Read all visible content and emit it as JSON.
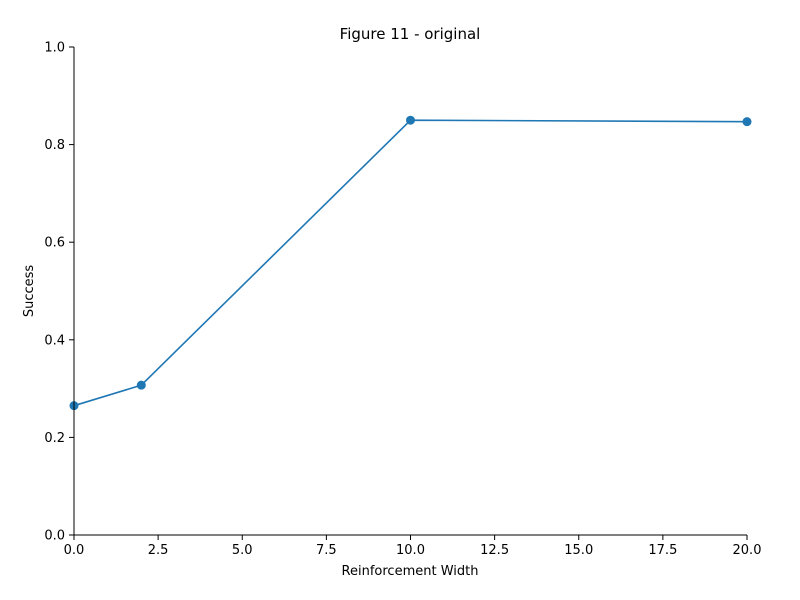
{
  "chart_data": {
    "type": "line",
    "title": "Figure 11 - original",
    "xlabel": "Reinforcement Width",
    "ylabel": "Success",
    "xlim": [
      0,
      20
    ],
    "ylim": [
      0,
      1
    ],
    "xticks": [
      0,
      2.5,
      5,
      7.5,
      10,
      12.5,
      15,
      17.5,
      20
    ],
    "xtick_labels": [
      "0.0",
      "2.5",
      "5.0",
      "7.5",
      "10.0",
      "12.5",
      "15.0",
      "17.5",
      "20.0"
    ],
    "yticks": [
      0,
      0.2,
      0.4,
      0.6,
      0.8,
      1.0
    ],
    "ytick_labels": [
      "0.0",
      "0.2",
      "0.4",
      "0.6",
      "0.8",
      "1.0"
    ],
    "grid": false,
    "legend": "none",
    "series": [
      {
        "color": "#1f77b4",
        "marker": "circle",
        "x": [
          0,
          2,
          10,
          20
        ],
        "y": [
          0.265,
          0.307,
          0.85,
          0.847
        ]
      }
    ]
  }
}
